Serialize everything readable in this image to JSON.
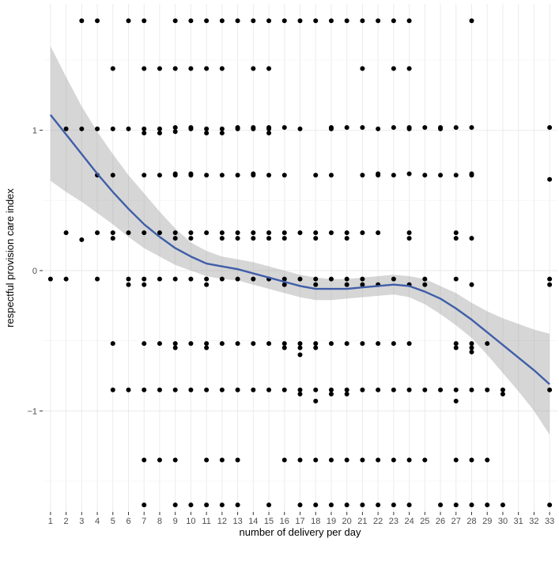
{
  "chart_data": {
    "type": "scatter",
    "xlabel": "number of delivery per day",
    "ylabel": "respectful provision care index",
    "x_ticks": [
      "1",
      "2",
      "3",
      "4",
      "5",
      "6",
      "7",
      "8",
      "9",
      "10",
      "11",
      "12",
      "13",
      "14",
      "15",
      "16",
      "17",
      "18",
      "19",
      "20",
      "21",
      "22",
      "23",
      "24",
      "25",
      "26",
      "27",
      "28",
      "29",
      "30",
      "31",
      "32",
      "33"
    ],
    "y_ticks": [
      "−1",
      "0",
      "1"
    ],
    "y_tick_values": [
      -1,
      0,
      1
    ],
    "xlim": [
      0.5,
      33.5
    ],
    "ylim": [
      -1.72,
      1.9
    ],
    "grid": true,
    "colors": {
      "panel": "#ffffff",
      "grid_major": "#ebebeb",
      "grid_minor": "#f4f4f4",
      "points": "#000000",
      "smooth_line": "#3f5ea8",
      "confidence_band": "#999999"
    },
    "points": [
      [
        1,
        -0.06
      ],
      [
        2,
        -0.06
      ],
      [
        2,
        0.27
      ],
      [
        2,
        1.01
      ],
      [
        3,
        1.78
      ],
      [
        3,
        1.01
      ],
      [
        3,
        0.22
      ],
      [
        4,
        1.78
      ],
      [
        4,
        1.01
      ],
      [
        4,
        0.68
      ],
      [
        4,
        0.27
      ],
      [
        4,
        -0.06
      ],
      [
        5,
        1.44
      ],
      [
        5,
        1.01
      ],
      [
        5,
        0.68
      ],
      [
        5,
        0.27
      ],
      [
        5,
        0.23
      ],
      [
        5,
        -0.52
      ],
      [
        5,
        -0.85
      ],
      [
        6,
        1.78
      ],
      [
        6,
        1.01
      ],
      [
        6,
        0.27
      ],
      [
        6,
        -0.06
      ],
      [
        6,
        -0.1
      ],
      [
        6,
        -0.85
      ],
      [
        7,
        1.78
      ],
      [
        7,
        1.44
      ],
      [
        7,
        1.01
      ],
      [
        7,
        0.98
      ],
      [
        7,
        0.68
      ],
      [
        7,
        0.27
      ],
      [
        7,
        -0.06
      ],
      [
        7,
        -0.1
      ],
      [
        7,
        -0.52
      ],
      [
        7,
        -0.85
      ],
      [
        7,
        -1.35
      ],
      [
        7,
        -1.67
      ],
      [
        8,
        1.44
      ],
      [
        8,
        1.01
      ],
      [
        8,
        0.98
      ],
      [
        8,
        0.68
      ],
      [
        8,
        0.27
      ],
      [
        8,
        -0.06
      ],
      [
        8,
        -0.52
      ],
      [
        8,
        -0.85
      ],
      [
        8,
        -1.35
      ],
      [
        9,
        1.78
      ],
      [
        9,
        1.44
      ],
      [
        9,
        1.02
      ],
      [
        9,
        0.99
      ],
      [
        9,
        0.69
      ],
      [
        9,
        0.68
      ],
      [
        9,
        0.27
      ],
      [
        9,
        0.23
      ],
      [
        9,
        -0.06
      ],
      [
        9,
        -0.52
      ],
      [
        9,
        -0.55
      ],
      [
        9,
        -0.85
      ],
      [
        9,
        -1.35
      ],
      [
        9,
        -1.67
      ],
      [
        10,
        1.78
      ],
      [
        10,
        1.44
      ],
      [
        10,
        1.02
      ],
      [
        10,
        1.01
      ],
      [
        10,
        0.69
      ],
      [
        10,
        0.68
      ],
      [
        10,
        0.27
      ],
      [
        10,
        0.23
      ],
      [
        10,
        -0.06
      ],
      [
        10,
        -0.52
      ],
      [
        10,
        -0.85
      ],
      [
        10,
        -1.67
      ],
      [
        11,
        1.78
      ],
      [
        11,
        1.44
      ],
      [
        11,
        1.01
      ],
      [
        11,
        0.98
      ],
      [
        11,
        0.68
      ],
      [
        11,
        0.27
      ],
      [
        11,
        -0.06
      ],
      [
        11,
        -0.1
      ],
      [
        11,
        -0.52
      ],
      [
        11,
        -0.55
      ],
      [
        11,
        -0.85
      ],
      [
        11,
        -1.35
      ],
      [
        11,
        -1.67
      ],
      [
        12,
        1.78
      ],
      [
        12,
        1.44
      ],
      [
        12,
        1.01
      ],
      [
        12,
        0.98
      ],
      [
        12,
        0.68
      ],
      [
        12,
        0.27
      ],
      [
        12,
        0.23
      ],
      [
        12,
        -0.06
      ],
      [
        12,
        -0.52
      ],
      [
        12,
        -0.85
      ],
      [
        12,
        -1.35
      ],
      [
        12,
        -1.67
      ],
      [
        13,
        1.78
      ],
      [
        13,
        1.02
      ],
      [
        13,
        1.01
      ],
      [
        13,
        0.68
      ],
      [
        13,
        0.27
      ],
      [
        13,
        0.23
      ],
      [
        13,
        -0.06
      ],
      [
        13,
        -0.52
      ],
      [
        13,
        -0.85
      ],
      [
        13,
        -1.35
      ],
      [
        13,
        -1.67
      ],
      [
        14,
        1.78
      ],
      [
        14,
        1.44
      ],
      [
        14,
        1.02
      ],
      [
        14,
        1.01
      ],
      [
        14,
        0.69
      ],
      [
        14,
        0.68
      ],
      [
        14,
        0.27
      ],
      [
        14,
        0.23
      ],
      [
        14,
        -0.06
      ],
      [
        14,
        -0.52
      ],
      [
        14,
        -0.85
      ],
      [
        15,
        1.78
      ],
      [
        15,
        1.44
      ],
      [
        15,
        1.02
      ],
      [
        15,
        1.01
      ],
      [
        15,
        0.98
      ],
      [
        15,
        0.68
      ],
      [
        15,
        0.27
      ],
      [
        15,
        0.23
      ],
      [
        15,
        -0.06
      ],
      [
        15,
        -0.52
      ],
      [
        15,
        -0.85
      ],
      [
        15,
        -1.67
      ],
      [
        16,
        1.78
      ],
      [
        16,
        1.02
      ],
      [
        16,
        0.68
      ],
      [
        16,
        0.27
      ],
      [
        16,
        0.23
      ],
      [
        16,
        -0.06
      ],
      [
        16,
        -0.1
      ],
      [
        16,
        -0.52
      ],
      [
        16,
        -0.55
      ],
      [
        16,
        -0.85
      ],
      [
        16,
        -1.35
      ],
      [
        17,
        1.78
      ],
      [
        17,
        1.01
      ],
      [
        17,
        0.27
      ],
      [
        17,
        -0.06
      ],
      [
        17,
        -0.52
      ],
      [
        17,
        -0.55
      ],
      [
        17,
        -0.6
      ],
      [
        17,
        -0.85
      ],
      [
        17,
        -0.88
      ],
      [
        17,
        -1.35
      ],
      [
        17,
        -1.67
      ],
      [
        18,
        1.78
      ],
      [
        18,
        0.68
      ],
      [
        18,
        0.27
      ],
      [
        18,
        0.23
      ],
      [
        18,
        -0.06
      ],
      [
        18,
        -0.1
      ],
      [
        18,
        -0.52
      ],
      [
        18,
        -0.55
      ],
      [
        18,
        -0.85
      ],
      [
        18,
        -0.93
      ],
      [
        18,
        -1.35
      ],
      [
        18,
        -1.67
      ],
      [
        19,
        1.78
      ],
      [
        19,
        1.02
      ],
      [
        19,
        1.01
      ],
      [
        19,
        0.68
      ],
      [
        19,
        0.27
      ],
      [
        19,
        -0.06
      ],
      [
        19,
        -0.52
      ],
      [
        19,
        -0.85
      ],
      [
        19,
        -0.88
      ],
      [
        19,
        -1.35
      ],
      [
        19,
        -1.67
      ],
      [
        20,
        1.78
      ],
      [
        20,
        1.02
      ],
      [
        20,
        0.27
      ],
      [
        20,
        0.23
      ],
      [
        20,
        -0.06
      ],
      [
        20,
        -0.1
      ],
      [
        20,
        -0.52
      ],
      [
        20,
        -0.85
      ],
      [
        20,
        -0.88
      ],
      [
        20,
        -1.35
      ],
      [
        20,
        -1.67
      ],
      [
        21,
        1.78
      ],
      [
        21,
        1.44
      ],
      [
        21,
        1.02
      ],
      [
        21,
        0.68
      ],
      [
        21,
        0.27
      ],
      [
        21,
        -0.06
      ],
      [
        21,
        -0.1
      ],
      [
        21,
        -0.52
      ],
      [
        21,
        -0.85
      ],
      [
        21,
        -1.35
      ],
      [
        21,
        -1.67
      ],
      [
        22,
        1.78
      ],
      [
        22,
        1.01
      ],
      [
        22,
        0.69
      ],
      [
        22,
        0.68
      ],
      [
        22,
        0.27
      ],
      [
        22,
        -0.1
      ],
      [
        22,
        -0.52
      ],
      [
        22,
        -0.85
      ],
      [
        22,
        -1.35
      ],
      [
        22,
        -1.67
      ],
      [
        23,
        1.78
      ],
      [
        23,
        1.44
      ],
      [
        23,
        1.02
      ],
      [
        23,
        0.68
      ],
      [
        23,
        -0.06
      ],
      [
        23,
        -0.52
      ],
      [
        23,
        -0.85
      ],
      [
        23,
        -1.35
      ],
      [
        23,
        -1.67
      ],
      [
        24,
        1.78
      ],
      [
        24,
        1.44
      ],
      [
        24,
        1.02
      ],
      [
        24,
        1.01
      ],
      [
        24,
        0.69
      ],
      [
        24,
        0.27
      ],
      [
        24,
        0.23
      ],
      [
        24,
        -0.1
      ],
      [
        24,
        -0.52
      ],
      [
        24,
        -0.85
      ],
      [
        24,
        -1.35
      ],
      [
        24,
        -1.67
      ],
      [
        25,
        1.02
      ],
      [
        25,
        0.68
      ],
      [
        25,
        -0.06
      ],
      [
        25,
        -0.1
      ],
      [
        25,
        -0.85
      ],
      [
        25,
        -1.35
      ],
      [
        26,
        1.02
      ],
      [
        26,
        1.01
      ],
      [
        26,
        0.68
      ],
      [
        26,
        -0.85
      ],
      [
        26,
        -1.67
      ],
      [
        27,
        1.02
      ],
      [
        27,
        0.68
      ],
      [
        27,
        0.27
      ],
      [
        27,
        0.23
      ],
      [
        27,
        -0.06
      ],
      [
        27,
        -0.52
      ],
      [
        27,
        -0.55
      ],
      [
        27,
        -0.85
      ],
      [
        27,
        -0.93
      ],
      [
        27,
        -1.35
      ],
      [
        27,
        -1.67
      ],
      [
        28,
        1.78
      ],
      [
        28,
        1.02
      ],
      [
        28,
        0.69
      ],
      [
        28,
        0.68
      ],
      [
        28,
        0.23
      ],
      [
        28,
        -0.1
      ],
      [
        28,
        -0.52
      ],
      [
        28,
        -0.55
      ],
      [
        28,
        -0.58
      ],
      [
        28,
        -0.85
      ],
      [
        28,
        -1.35
      ],
      [
        28,
        -1.67
      ],
      [
        29,
        -0.52
      ],
      [
        29,
        -0.85
      ],
      [
        29,
        -1.35
      ],
      [
        29,
        -1.67
      ],
      [
        30,
        -0.85
      ],
      [
        30,
        -0.88
      ],
      [
        30,
        -1.67
      ],
      [
        33,
        1.02
      ],
      [
        33,
        0.65
      ],
      [
        33,
        -0.06
      ],
      [
        33,
        -0.1
      ],
      [
        33,
        -0.85
      ],
      [
        33,
        -1.67
      ]
    ],
    "smooth_line": [
      [
        1,
        1.11
      ],
      [
        2,
        0.97
      ],
      [
        3,
        0.83
      ],
      [
        4,
        0.69
      ],
      [
        5,
        0.56
      ],
      [
        6,
        0.44
      ],
      [
        7,
        0.33
      ],
      [
        8,
        0.24
      ],
      [
        9,
        0.16
      ],
      [
        10,
        0.1
      ],
      [
        11,
        0.05
      ],
      [
        12,
        0.03
      ],
      [
        13,
        0.01
      ],
      [
        14,
        -0.02
      ],
      [
        15,
        -0.05
      ],
      [
        16,
        -0.08
      ],
      [
        17,
        -0.11
      ],
      [
        18,
        -0.13
      ],
      [
        19,
        -0.13
      ],
      [
        20,
        -0.13
      ],
      [
        21,
        -0.12
      ],
      [
        22,
        -0.11
      ],
      [
        23,
        -0.1
      ],
      [
        24,
        -0.11
      ],
      [
        25,
        -0.15
      ],
      [
        26,
        -0.2
      ],
      [
        27,
        -0.27
      ],
      [
        28,
        -0.35
      ],
      [
        29,
        -0.44
      ],
      [
        30,
        -0.53
      ],
      [
        31,
        -0.62
      ],
      [
        32,
        -0.71
      ],
      [
        33,
        -0.81
      ]
    ],
    "ribbon_upper": [
      1.6,
      1.38,
      1.17,
      0.99,
      0.83,
      0.68,
      0.55,
      0.42,
      0.3,
      0.2,
      0.14,
      0.1,
      0.08,
      0.06,
      0.03,
      0.0,
      -0.03,
      -0.05,
      -0.06,
      -0.06,
      -0.05,
      -0.04,
      -0.03,
      -0.04,
      -0.06,
      -0.11,
      -0.16,
      -0.23,
      -0.29,
      -0.34,
      -0.38,
      -0.42,
      -0.45
    ],
    "ribbon_lower": [
      0.64,
      0.56,
      0.49,
      0.41,
      0.33,
      0.24,
      0.16,
      0.1,
      0.04,
      0.0,
      -0.04,
      -0.06,
      -0.07,
      -0.1,
      -0.13,
      -0.16,
      -0.19,
      -0.21,
      -0.21,
      -0.2,
      -0.19,
      -0.18,
      -0.17,
      -0.19,
      -0.24,
      -0.31,
      -0.39,
      -0.48,
      -0.6,
      -0.73,
      -0.86,
      -1.0,
      -1.17
    ]
  }
}
